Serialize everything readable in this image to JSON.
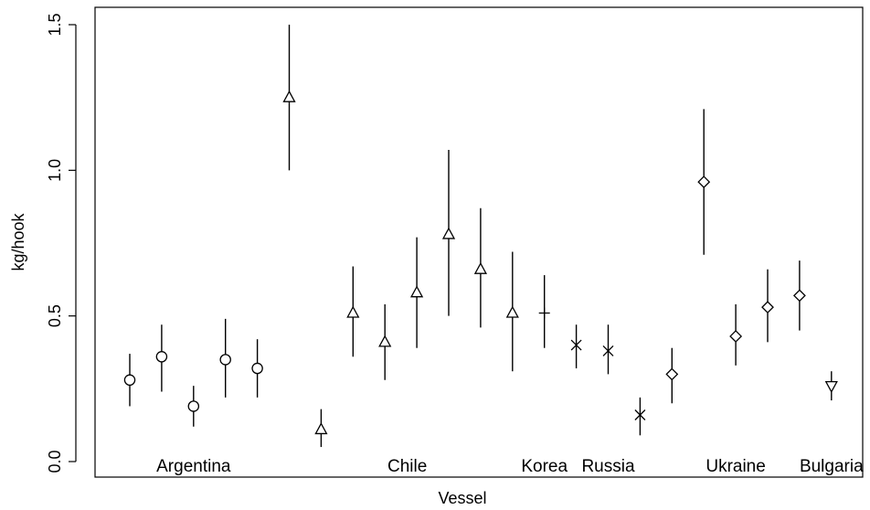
{
  "chart_data": {
    "type": "scatter",
    "title": "",
    "xlabel": "Vessel",
    "ylabel": "kg/hook",
    "ylim": [
      0.0,
      1.5
    ],
    "yticks": [
      "0.0",
      "0.5",
      "1.0",
      "1.5"
    ],
    "grid": false,
    "groups": [
      {
        "name": "Argentina",
        "symbol": "circle"
      },
      {
        "name": "Chile",
        "symbol": "triangle-up"
      },
      {
        "name": "Korea",
        "symbol": "plus"
      },
      {
        "name": "Russia",
        "symbol": "cross"
      },
      {
        "name": "Ukraine",
        "symbol": "diamond"
      },
      {
        "name": "Bulgaria",
        "symbol": "triangle-down"
      }
    ],
    "points": [
      {
        "x": 1,
        "group": "Argentina",
        "y": 0.28,
        "low": 0.19,
        "high": 0.37
      },
      {
        "x": 2,
        "group": "Argentina",
        "y": 0.36,
        "low": 0.24,
        "high": 0.47
      },
      {
        "x": 3,
        "group": "Argentina",
        "y": 0.19,
        "low": 0.12,
        "high": 0.26
      },
      {
        "x": 4,
        "group": "Argentina",
        "y": 0.35,
        "low": 0.22,
        "high": 0.49
      },
      {
        "x": 5,
        "group": "Argentina",
        "y": 0.32,
        "low": 0.22,
        "high": 0.42
      },
      {
        "x": 6,
        "group": "Chile",
        "y": 1.25,
        "low": 1.0,
        "high": 1.5
      },
      {
        "x": 7,
        "group": "Chile",
        "y": 0.11,
        "low": 0.05,
        "high": 0.18
      },
      {
        "x": 8,
        "group": "Chile",
        "y": 0.51,
        "low": 0.36,
        "high": 0.67
      },
      {
        "x": 9,
        "group": "Chile",
        "y": 0.41,
        "low": 0.28,
        "high": 0.54
      },
      {
        "x": 10,
        "group": "Chile",
        "y": 0.58,
        "low": 0.39,
        "high": 0.77
      },
      {
        "x": 11,
        "group": "Chile",
        "y": 0.78,
        "low": 0.5,
        "high": 1.07
      },
      {
        "x": 12,
        "group": "Chile",
        "y": 0.66,
        "low": 0.46,
        "high": 0.87
      },
      {
        "x": 13,
        "group": "Chile",
        "y": 0.51,
        "low": 0.31,
        "high": 0.72
      },
      {
        "x": 14,
        "group": "Korea",
        "y": 0.51,
        "low": 0.39,
        "high": 0.64
      },
      {
        "x": 15,
        "group": "Russia",
        "y": 0.4,
        "low": 0.32,
        "high": 0.47
      },
      {
        "x": 16,
        "group": "Russia",
        "y": 0.38,
        "low": 0.3,
        "high": 0.47
      },
      {
        "x": 17,
        "group": "Russia",
        "y": 0.16,
        "low": 0.09,
        "high": 0.22
      },
      {
        "x": 18,
        "group": "Ukraine",
        "y": 0.3,
        "low": 0.2,
        "high": 0.39
      },
      {
        "x": 19,
        "group": "Ukraine",
        "y": 0.96,
        "low": 0.71,
        "high": 1.21
      },
      {
        "x": 20,
        "group": "Ukraine",
        "y": 0.43,
        "low": 0.33,
        "high": 0.54
      },
      {
        "x": 21,
        "group": "Ukraine",
        "y": 0.53,
        "low": 0.41,
        "high": 0.66
      },
      {
        "x": 22,
        "group": "Ukraine",
        "y": 0.57,
        "low": 0.45,
        "high": 0.69
      },
      {
        "x": 23,
        "group": "Bulgaria",
        "y": 0.26,
        "low": 0.21,
        "high": 0.31
      }
    ],
    "group_labels": [
      {
        "text": "Argentina",
        "x": 3
      },
      {
        "text": "Chile",
        "x": 9.7
      },
      {
        "text": "Korea",
        "x": 14
      },
      {
        "text": "Russia",
        "x": 16
      },
      {
        "text": "Ukraine",
        "x": 20
      },
      {
        "text": "Bulgaria",
        "x": 23
      }
    ]
  }
}
